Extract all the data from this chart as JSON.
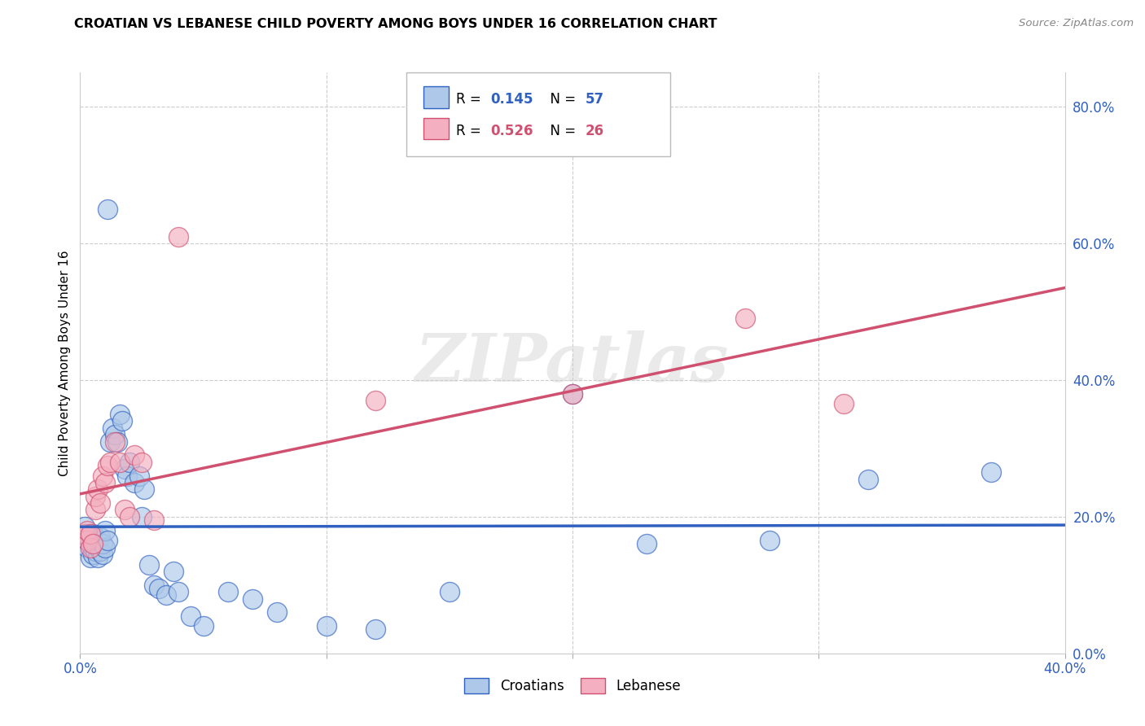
{
  "title": "CROATIAN VS LEBANESE CHILD POVERTY AMONG BOYS UNDER 16 CORRELATION CHART",
  "source": "Source: ZipAtlas.com",
  "ylabel": "Child Poverty Among Boys Under 16",
  "xlim": [
    0.0,
    0.4
  ],
  "ylim": [
    0.0,
    0.85
  ],
  "yticks_right": [
    0.0,
    0.2,
    0.4,
    0.6,
    0.8
  ],
  "ytick_labels_right": [
    "0.0%",
    "20.0%",
    "40.0%",
    "60.0%",
    "80.0%"
  ],
  "xtick_labels_sparse": [
    "0.0%",
    "",
    "",
    "",
    "40.0%"
  ],
  "xtick_vals": [
    0.0,
    0.1,
    0.2,
    0.3,
    0.4
  ],
  "croatian_R": 0.145,
  "croatian_N": 57,
  "lebanese_R": 0.526,
  "lebanese_N": 26,
  "croatian_color": "#adc8e8",
  "lebanese_color": "#f4b0c0",
  "trendline_croatian_color": "#3060c0",
  "trendline_lebanese_color": "#d05070",
  "watermark": "ZIPatlas",
  "cr_x": [
    0.002,
    0.002,
    0.003,
    0.003,
    0.003,
    0.004,
    0.004,
    0.004,
    0.005,
    0.005,
    0.005,
    0.005,
    0.006,
    0.006,
    0.006,
    0.007,
    0.007,
    0.008,
    0.008,
    0.009,
    0.009,
    0.01,
    0.01,
    0.011,
    0.011,
    0.012,
    0.013,
    0.014,
    0.015,
    0.016,
    0.017,
    0.018,
    0.019,
    0.02,
    0.022,
    0.024,
    0.025,
    0.026,
    0.028,
    0.03,
    0.032,
    0.035,
    0.038,
    0.04,
    0.045,
    0.05,
    0.06,
    0.07,
    0.08,
    0.1,
    0.12,
    0.15,
    0.2,
    0.23,
    0.28,
    0.32,
    0.37
  ],
  "cr_y": [
    0.175,
    0.185,
    0.155,
    0.165,
    0.17,
    0.14,
    0.16,
    0.175,
    0.145,
    0.155,
    0.165,
    0.175,
    0.15,
    0.16,
    0.17,
    0.14,
    0.165,
    0.15,
    0.17,
    0.145,
    0.16,
    0.155,
    0.18,
    0.165,
    0.65,
    0.31,
    0.33,
    0.32,
    0.31,
    0.35,
    0.34,
    0.27,
    0.26,
    0.28,
    0.25,
    0.26,
    0.2,
    0.24,
    0.13,
    0.1,
    0.095,
    0.085,
    0.12,
    0.09,
    0.055,
    0.04,
    0.09,
    0.08,
    0.06,
    0.04,
    0.035,
    0.09,
    0.38,
    0.16,
    0.165,
    0.255,
    0.265
  ],
  "lb_x": [
    0.002,
    0.003,
    0.003,
    0.004,
    0.004,
    0.005,
    0.006,
    0.006,
    0.007,
    0.008,
    0.009,
    0.01,
    0.011,
    0.012,
    0.014,
    0.016,
    0.018,
    0.02,
    0.022,
    0.025,
    0.03,
    0.04,
    0.12,
    0.2,
    0.27,
    0.31
  ],
  "lb_y": [
    0.175,
    0.165,
    0.18,
    0.155,
    0.175,
    0.16,
    0.21,
    0.23,
    0.24,
    0.22,
    0.26,
    0.25,
    0.275,
    0.28,
    0.31,
    0.28,
    0.21,
    0.2,
    0.29,
    0.28,
    0.195,
    0.61,
    0.37,
    0.38,
    0.49,
    0.365
  ]
}
